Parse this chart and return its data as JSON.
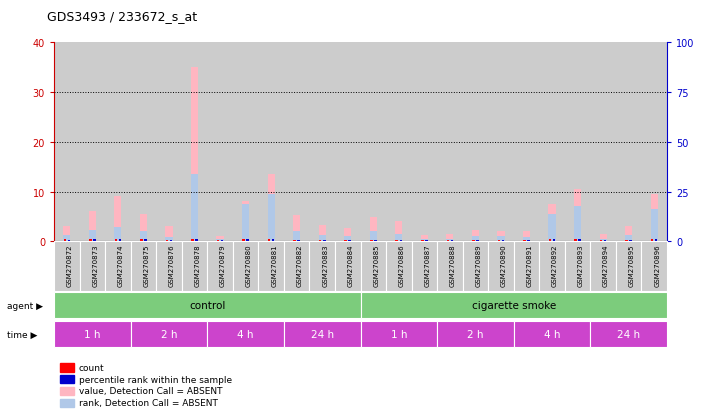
{
  "title": "GDS3493 / 233672_s_at",
  "samples": [
    "GSM270872",
    "GSM270873",
    "GSM270874",
    "GSM270875",
    "GSM270876",
    "GSM270878",
    "GSM270879",
    "GSM270880",
    "GSM270881",
    "GSM270882",
    "GSM270883",
    "GSM270884",
    "GSM270885",
    "GSM270886",
    "GSM270887",
    "GSM270888",
    "GSM270889",
    "GSM270890",
    "GSM270891",
    "GSM270892",
    "GSM270893",
    "GSM270894",
    "GSM270895",
    "GSM270896"
  ],
  "pink_bars": [
    3.0,
    6.0,
    9.0,
    5.5,
    3.0,
    35.0,
    1.0,
    8.0,
    13.5,
    5.2,
    3.2,
    2.6,
    4.8,
    4.0,
    1.2,
    1.5,
    2.2,
    2.0,
    2.0,
    7.5,
    10.5,
    1.5,
    3.0,
    9.5
  ],
  "light_blue_bars": [
    1.2,
    2.2,
    2.8,
    2.0,
    0.8,
    13.5,
    0.4,
    7.5,
    9.5,
    2.0,
    1.2,
    1.0,
    2.0,
    1.5,
    0.5,
    0.5,
    1.0,
    1.0,
    0.8,
    5.5,
    7.0,
    0.5,
    1.2,
    6.5
  ],
  "red_bars": [
    0.5,
    0.5,
    0.5,
    0.5,
    0.2,
    0.5,
    0.3,
    0.5,
    0.5,
    0.3,
    0.3,
    0.3,
    0.3,
    0.3,
    0.2,
    0.2,
    0.3,
    0.2,
    0.2,
    0.4,
    0.5,
    0.2,
    0.3,
    0.5
  ],
  "dark_blue_bars": [
    0.3,
    0.5,
    0.5,
    0.4,
    0.2,
    0.5,
    0.2,
    0.5,
    0.5,
    0.3,
    0.2,
    0.2,
    0.3,
    0.3,
    0.2,
    0.2,
    0.2,
    0.2,
    0.2,
    0.4,
    0.5,
    0.2,
    0.2,
    0.4
  ],
  "ylim_left": [
    0,
    40
  ],
  "ylim_right": [
    0,
    100
  ],
  "yticks_left": [
    0,
    10,
    20,
    30,
    40
  ],
  "yticks_right": [
    0,
    25,
    50,
    75,
    100
  ],
  "left_tick_color": "#cc0000",
  "right_tick_color": "#0000cc",
  "agent_groups": [
    {
      "label": "control",
      "start": 0,
      "end": 12,
      "color": "#7ccc7c"
    },
    {
      "label": "cigarette smoke",
      "start": 12,
      "end": 24,
      "color": "#7ccc7c"
    }
  ],
  "time_groups": [
    {
      "label": "1 h",
      "start": 0,
      "end": 3,
      "color": "#cc44cc"
    },
    {
      "label": "2 h",
      "start": 3,
      "end": 6,
      "color": "#cc44cc"
    },
    {
      "label": "4 h",
      "start": 6,
      "end": 9,
      "color": "#cc44cc"
    },
    {
      "label": "24 h",
      "start": 9,
      "end": 12,
      "color": "#cc44cc"
    },
    {
      "label": "1 h",
      "start": 12,
      "end": 15,
      "color": "#cc44cc"
    },
    {
      "label": "2 h",
      "start": 15,
      "end": 18,
      "color": "#cc44cc"
    },
    {
      "label": "4 h",
      "start": 18,
      "end": 21,
      "color": "#cc44cc"
    },
    {
      "label": "24 h",
      "start": 21,
      "end": 24,
      "color": "#cc44cc"
    }
  ],
  "cell_bg_color": "#cccccc",
  "pink_color": "#ffb6c1",
  "light_blue_color": "#b0c8e8",
  "red_color": "#ff0000",
  "dark_blue_color": "#0000cc",
  "legend_items": [
    {
      "color": "#ff0000",
      "label": "count"
    },
    {
      "color": "#0000cc",
      "label": "percentile rank within the sample"
    },
    {
      "color": "#ffb6c1",
      "label": "value, Detection Call = ABSENT"
    },
    {
      "color": "#b0c8e8",
      "label": "rank, Detection Call = ABSENT"
    }
  ]
}
